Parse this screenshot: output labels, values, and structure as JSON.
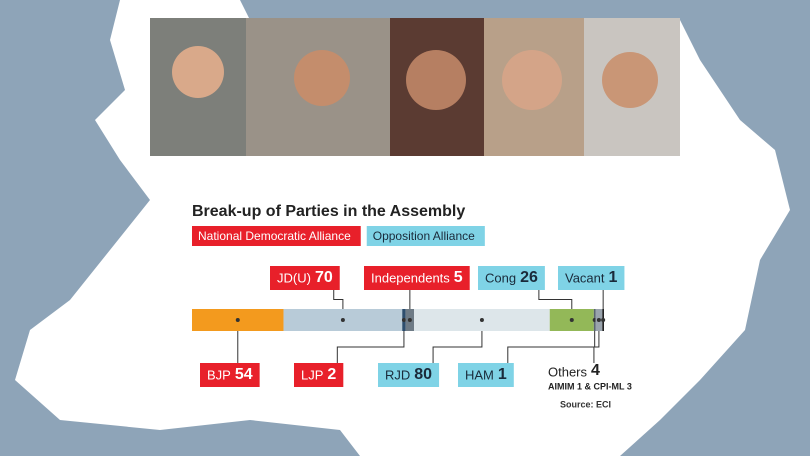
{
  "chart_data": {
    "type": "stacked-bar",
    "title": "Break-up of Parties in the Assembly",
    "legend": [
      {
        "name": "National Democratic Alliance",
        "color": "#e8202a"
      },
      {
        "name": "Opposition Alliance",
        "color": "#7fd3e6"
      }
    ],
    "series": [
      {
        "name": "BJP",
        "color": "#f39a1e",
        "values": [
          54
        ],
        "label_color": "#e8202a"
      },
      {
        "name": "JD(U)",
        "color": "#b8cbd8",
        "values": [
          70
        ],
        "label_color": "#e8202a"
      },
      {
        "name": "LJP",
        "color": "#2d4e6e",
        "values": [
          2
        ],
        "label_color": "#e8202a"
      },
      {
        "name": "Independents",
        "color": "#6e7b86",
        "values": [
          5
        ],
        "label_color": "#e8202a"
      },
      {
        "name": "RJD",
        "color": "#dde6ea",
        "values": [
          80
        ],
        "label_color": "#7fd3e6"
      },
      {
        "name": "Cong",
        "color": "#93b858",
        "values": [
          26
        ],
        "label_color": "#7fd3e6"
      },
      {
        "name": "HAM",
        "color": "#5a6570",
        "values": [
          1
        ],
        "label_color": "#7fd3e6"
      },
      {
        "name": "Others",
        "color": "#9aa4ad",
        "values": [
          4
        ],
        "note": "AIMIM 1 & CPI-ML 3"
      },
      {
        "name": "Vacant",
        "color": "#222222",
        "values": [
          1
        ],
        "label_color": "#7fd3e6"
      }
    ],
    "source": "Source: ECI"
  }
}
